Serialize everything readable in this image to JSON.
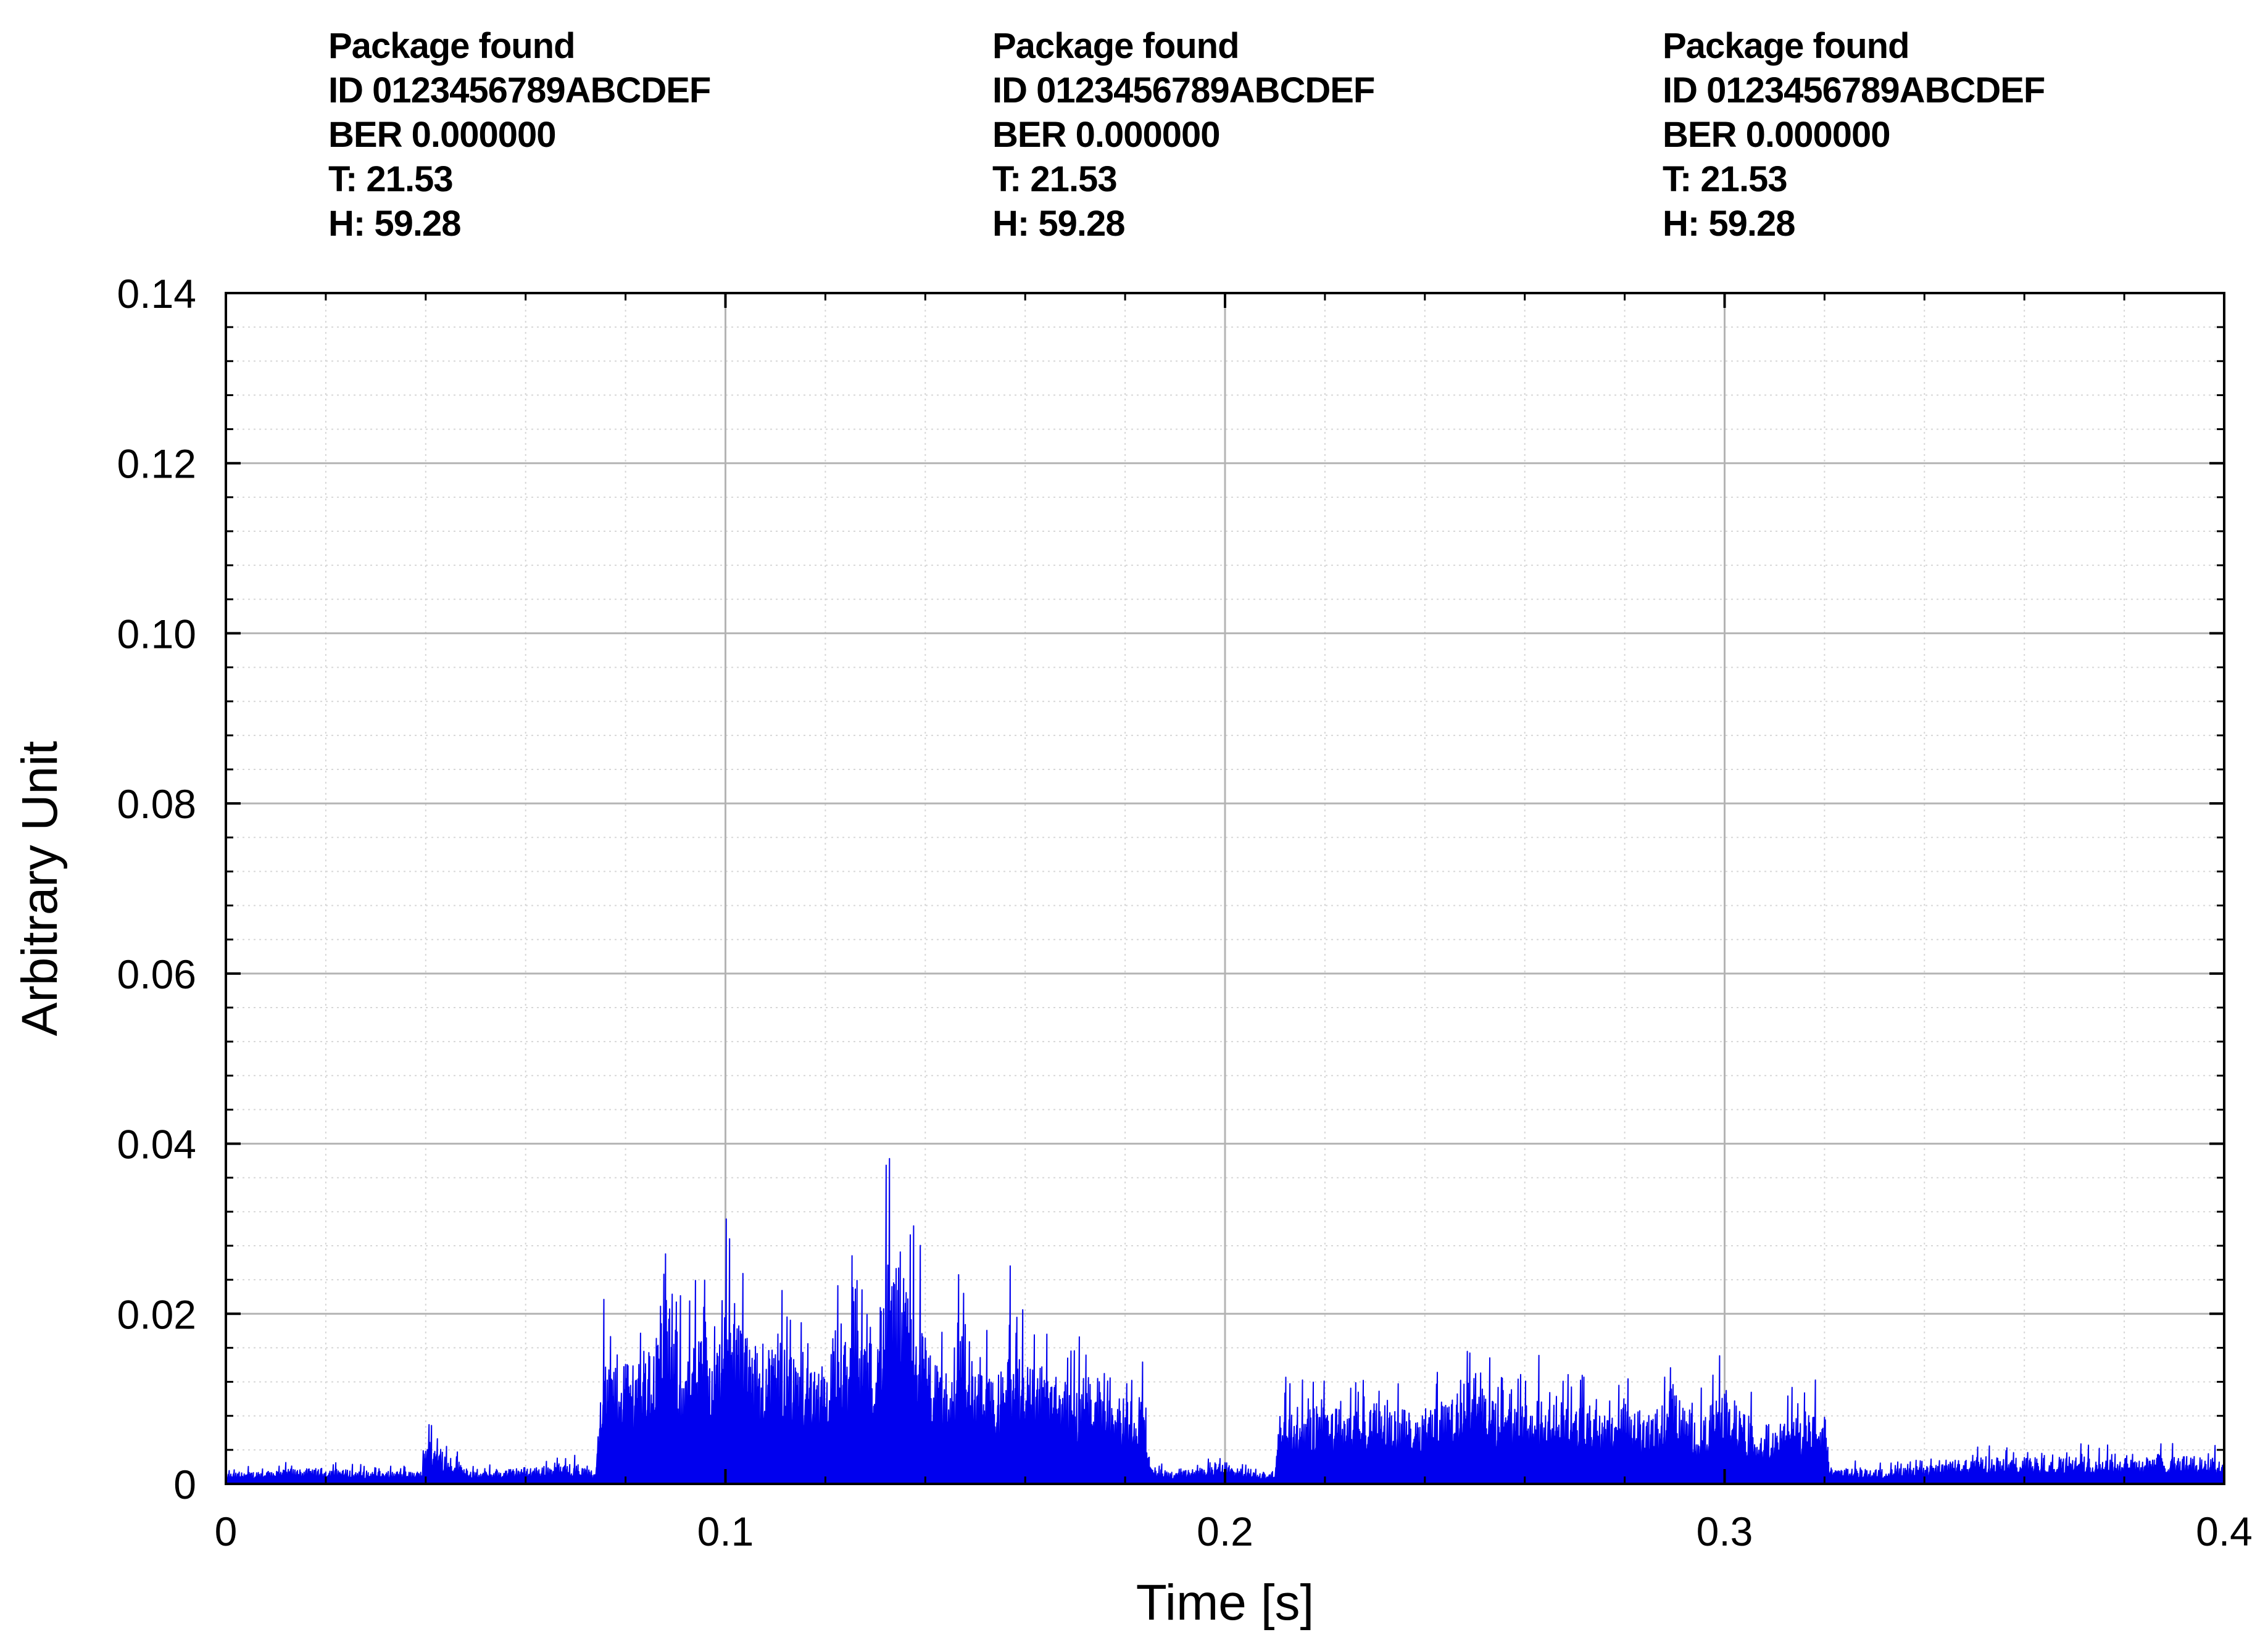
{
  "colors": {
    "signal": "#0000ee",
    "major_grid": "#b4b4b4",
    "minor_grid": "#d7d7d7",
    "axes": "#000000",
    "background": "#ffffff"
  },
  "annotations": [
    {
      "lines": [
        "Package found",
        "ID 0123456789ABCDEF",
        "BER 0.000000",
        "T: 21.53",
        "H: 59.28"
      ]
    },
    {
      "lines": [
        "Package found",
        "ID 0123456789ABCDEF",
        "BER 0.000000",
        "T: 21.53",
        "H: 59.28"
      ]
    },
    {
      "lines": [
        "Package found",
        "ID 0123456789ABCDEF",
        "BER 0.000000",
        "T: 21.53",
        "H: 59.28"
      ]
    }
  ],
  "chart_data": {
    "type": "area",
    "xlabel": "Time [s]",
    "ylabel": "Arbitrary Unit",
    "xlim": [
      0,
      0.4
    ],
    "ylim": [
      0,
      0.14
    ],
    "grid": true,
    "minor_grid": true,
    "x_ticks": [
      "0",
      "0.1",
      "0.2",
      "0.3",
      "0.4"
    ],
    "x_tick_values": [
      0,
      0.1,
      0.2,
      0.3,
      0.4
    ],
    "y_ticks": [
      "0",
      "0.02",
      "0.04",
      "0.06",
      "0.08",
      "0.10",
      "0.12",
      "0.14"
    ],
    "y_tick_values": [
      0,
      0.02,
      0.04,
      0.06,
      0.08,
      0.1,
      0.12,
      0.14
    ],
    "series": [
      {
        "values": [
          [
            0.0,
            0.0018
          ],
          [
            0.01,
            0.0025
          ],
          [
            0.02,
            0.0028
          ],
          [
            0.03,
            0.0022
          ],
          [
            0.04,
            0.008
          ],
          [
            0.05,
            0.002
          ],
          [
            0.06,
            0.003
          ],
          [
            0.07,
            0.0035
          ],
          [
            0.074,
            0.002
          ],
          [
            0.075,
            0.0215
          ],
          [
            0.08,
            0.023
          ],
          [
            0.085,
            0.024
          ],
          [
            0.088,
            0.0325
          ],
          [
            0.092,
            0.023
          ],
          [
            0.097,
            0.027
          ],
          [
            0.1,
            0.035
          ],
          [
            0.105,
            0.024
          ],
          [
            0.11,
            0.025
          ],
          [
            0.115,
            0.023
          ],
          [
            0.12,
            0.022
          ],
          [
            0.125,
            0.027
          ],
          [
            0.13,
            0.028
          ],
          [
            0.132,
            0.0385
          ],
          [
            0.135,
            0.038
          ],
          [
            0.138,
            0.032
          ],
          [
            0.142,
            0.021
          ],
          [
            0.146,
            0.0175
          ],
          [
            0.147,
            0.0305
          ],
          [
            0.15,
            0.02
          ],
          [
            0.155,
            0.017
          ],
          [
            0.157,
            0.026
          ],
          [
            0.16,
            0.022
          ],
          [
            0.165,
            0.02
          ],
          [
            0.17,
            0.017
          ],
          [
            0.175,
            0.019
          ],
          [
            0.18,
            0.015
          ],
          [
            0.184,
            0.016
          ],
          [
            0.185,
            0.003
          ],
          [
            0.19,
            0.002
          ],
          [
            0.2,
            0.0038
          ],
          [
            0.205,
            0.002
          ],
          [
            0.21,
            0.002
          ],
          [
            0.211,
            0.0135
          ],
          [
            0.215,
            0.012
          ],
          [
            0.22,
            0.0145
          ],
          [
            0.225,
            0.012
          ],
          [
            0.23,
            0.014
          ],
          [
            0.235,
            0.013
          ],
          [
            0.24,
            0.0135
          ],
          [
            0.245,
            0.015
          ],
          [
            0.25,
            0.019
          ],
          [
            0.255,
            0.013
          ],
          [
            0.26,
            0.014
          ],
          [
            0.265,
            0.016
          ],
          [
            0.27,
            0.014
          ],
          [
            0.275,
            0.013
          ],
          [
            0.28,
            0.014
          ],
          [
            0.285,
            0.012
          ],
          [
            0.29,
            0.016
          ],
          [
            0.295,
            0.011
          ],
          [
            0.3,
            0.017
          ],
          [
            0.305,
            0.011
          ],
          [
            0.31,
            0.01
          ],
          [
            0.315,
            0.012
          ],
          [
            0.32,
            0.013
          ],
          [
            0.321,
            0.003
          ],
          [
            0.33,
            0.0025
          ],
          [
            0.34,
            0.003
          ],
          [
            0.35,
            0.005
          ],
          [
            0.36,
            0.0045
          ],
          [
            0.37,
            0.005
          ],
          [
            0.38,
            0.0045
          ],
          [
            0.39,
            0.005
          ],
          [
            0.4,
            0.0045
          ]
        ]
      }
    ]
  }
}
